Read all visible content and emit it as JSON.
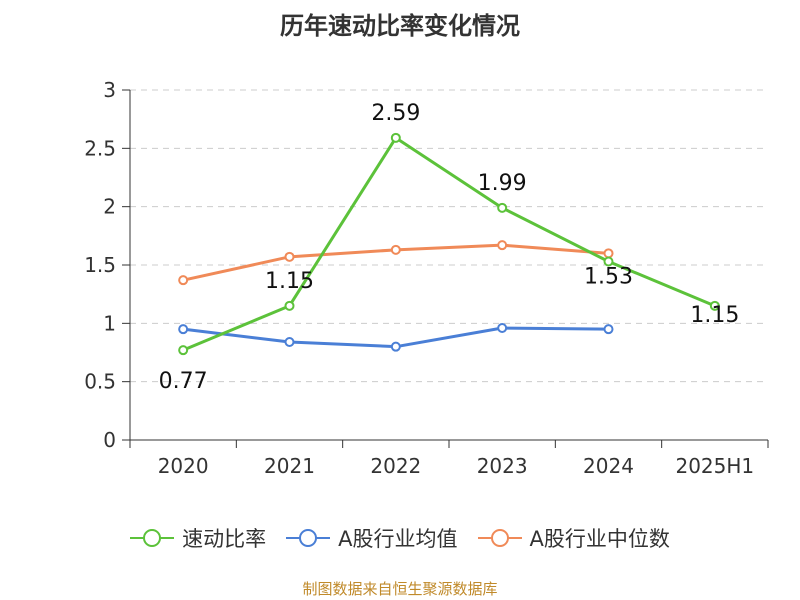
{
  "title": "历年速动比率变化情况",
  "source": "制图数据来自恒生聚源数据库",
  "chart_data": {
    "type": "line",
    "categories": [
      "2020",
      "2021",
      "2022",
      "2023",
      "2024",
      "2025H1"
    ],
    "ylim": [
      0,
      3
    ],
    "yticks": [
      "0",
      "0.5",
      "1",
      "1.5",
      "2",
      "2.5",
      "3"
    ],
    "ytick_values": [
      0,
      0.5,
      1,
      1.5,
      2,
      2.5,
      3
    ],
    "grid": "horizontal-dashed",
    "legend_position": "bottom",
    "series": [
      {
        "name": "速动比率",
        "color": "#5cc23a",
        "values": [
          0.77,
          1.15,
          2.59,
          1.99,
          1.53,
          1.15
        ],
        "labels": [
          "0.77",
          "1.15",
          "2.59",
          "1.99",
          "1.53",
          "1.15"
        ]
      },
      {
        "name": "A股行业均值",
        "color": "#4a7fd6",
        "values": [
          0.95,
          0.84,
          0.8,
          0.96,
          0.95,
          null
        ]
      },
      {
        "name": "A股行业中位数",
        "color": "#f08a58",
        "values": [
          1.37,
          1.57,
          1.63,
          1.67,
          1.6,
          null
        ]
      }
    ]
  }
}
